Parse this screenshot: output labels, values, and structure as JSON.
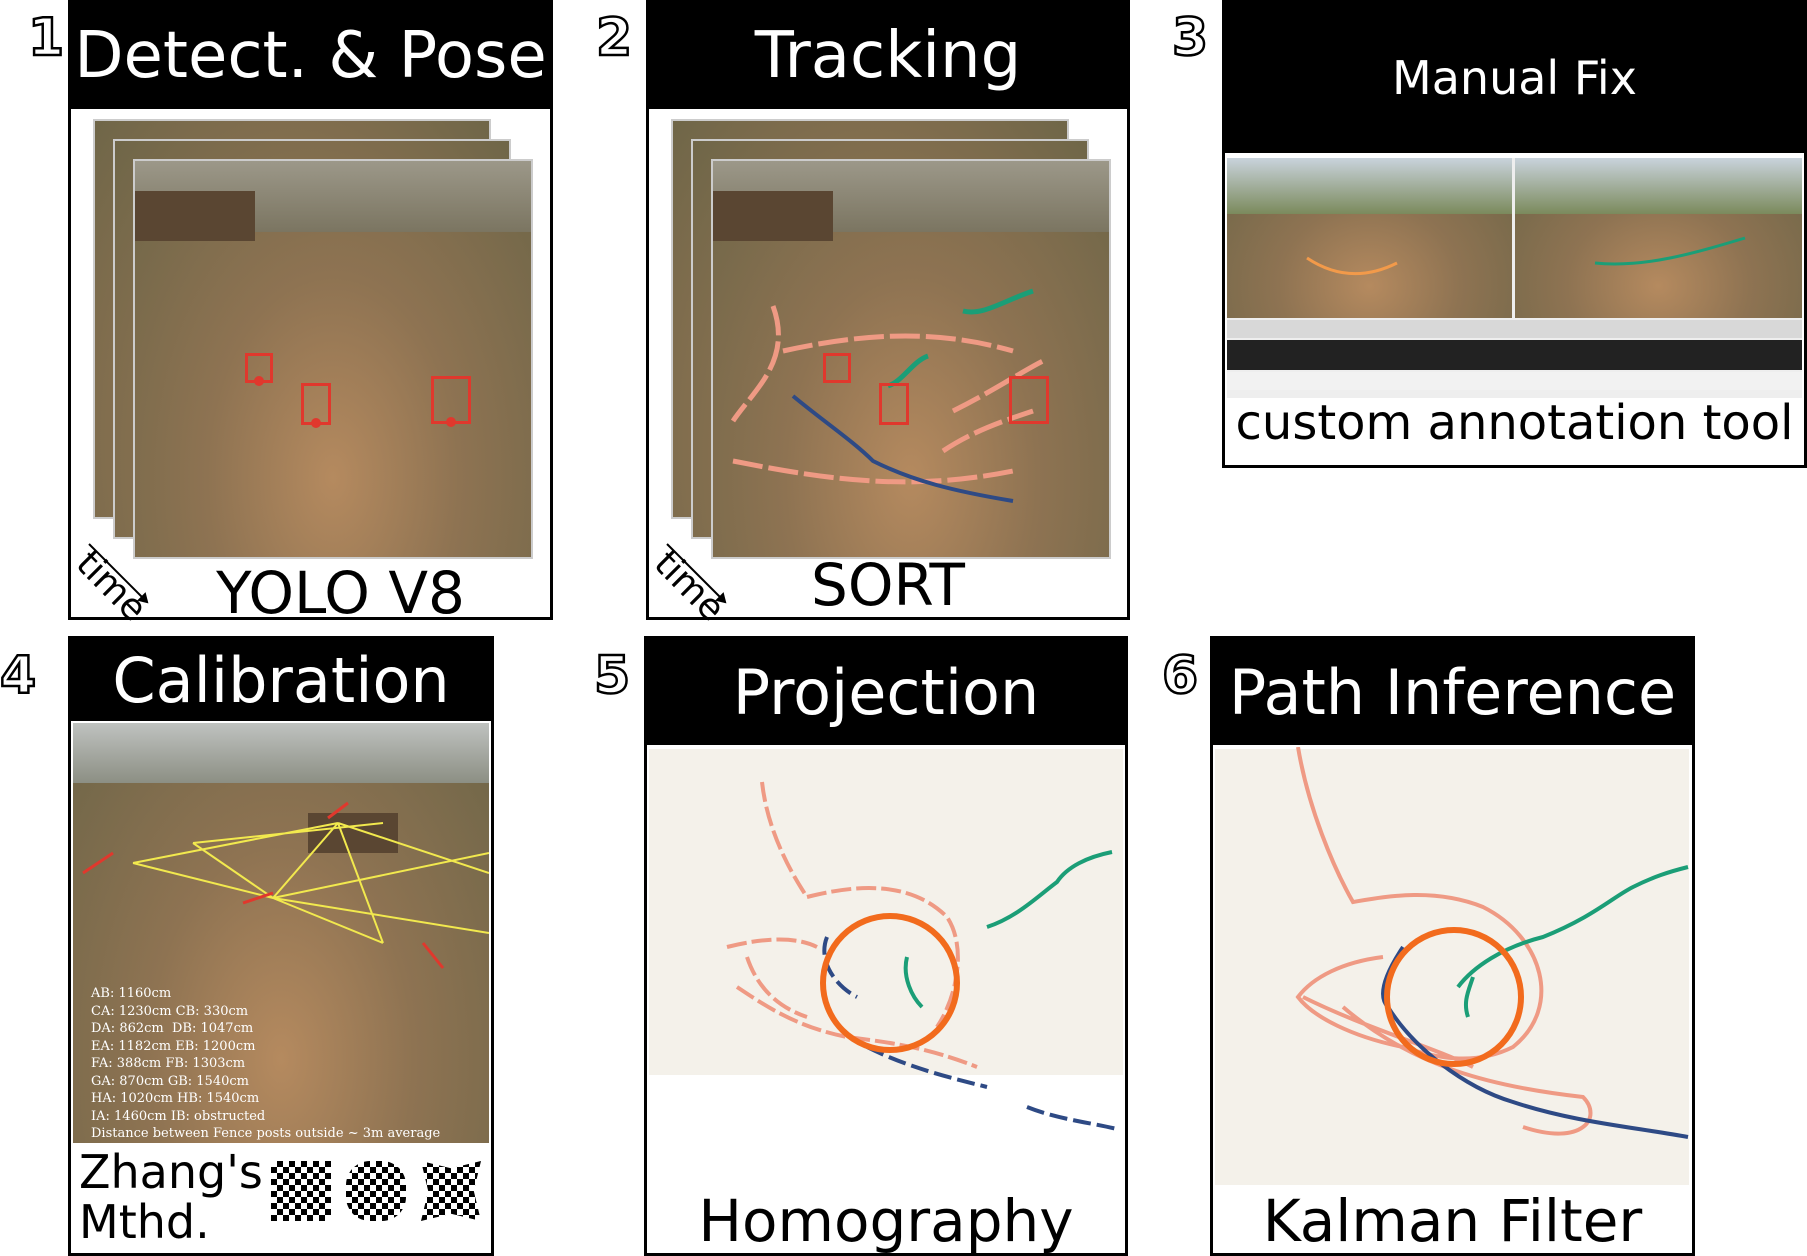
{
  "panels": [
    {
      "number": "1",
      "title": "Detect. & Pose",
      "caption": "YOLO V8",
      "time_label": "time"
    },
    {
      "number": "2",
      "title": "Tracking",
      "caption": "SORT",
      "time_label": "time"
    },
    {
      "number": "3",
      "title": "Manual Fix",
      "caption": "custom annotation tool"
    },
    {
      "number": "4",
      "title": "Calibration",
      "caption": "Zhang's\nMthd."
    },
    {
      "number": "5",
      "title": "Projection",
      "caption": "Homography"
    },
    {
      "number": "6",
      "title": "Path Inference",
      "caption": "Kalman Filter"
    }
  ],
  "calibration_text": [
    "AB: 1160cm",
    "CA: 1230cm CB: 330cm",
    "DA: 862cm  DB: 1047cm",
    "EA: 1182cm EB: 1200cm",
    "FA: 388cm FB: 1303cm",
    "GA: 870cm GB: 1540cm",
    "HA: 1020cm HB: 1540cm",
    "IA: 1460cm IB: obstructed",
    "Distance between Fence posts outside ~ 3m average"
  ],
  "colors": {
    "salmon_track": "#ef9a84",
    "teal_track": "#1b9e77",
    "navy_track": "#2e4a85",
    "circle": "#f26b1d",
    "box": "#e0382d",
    "projection_bg": "#f4f1ea"
  }
}
